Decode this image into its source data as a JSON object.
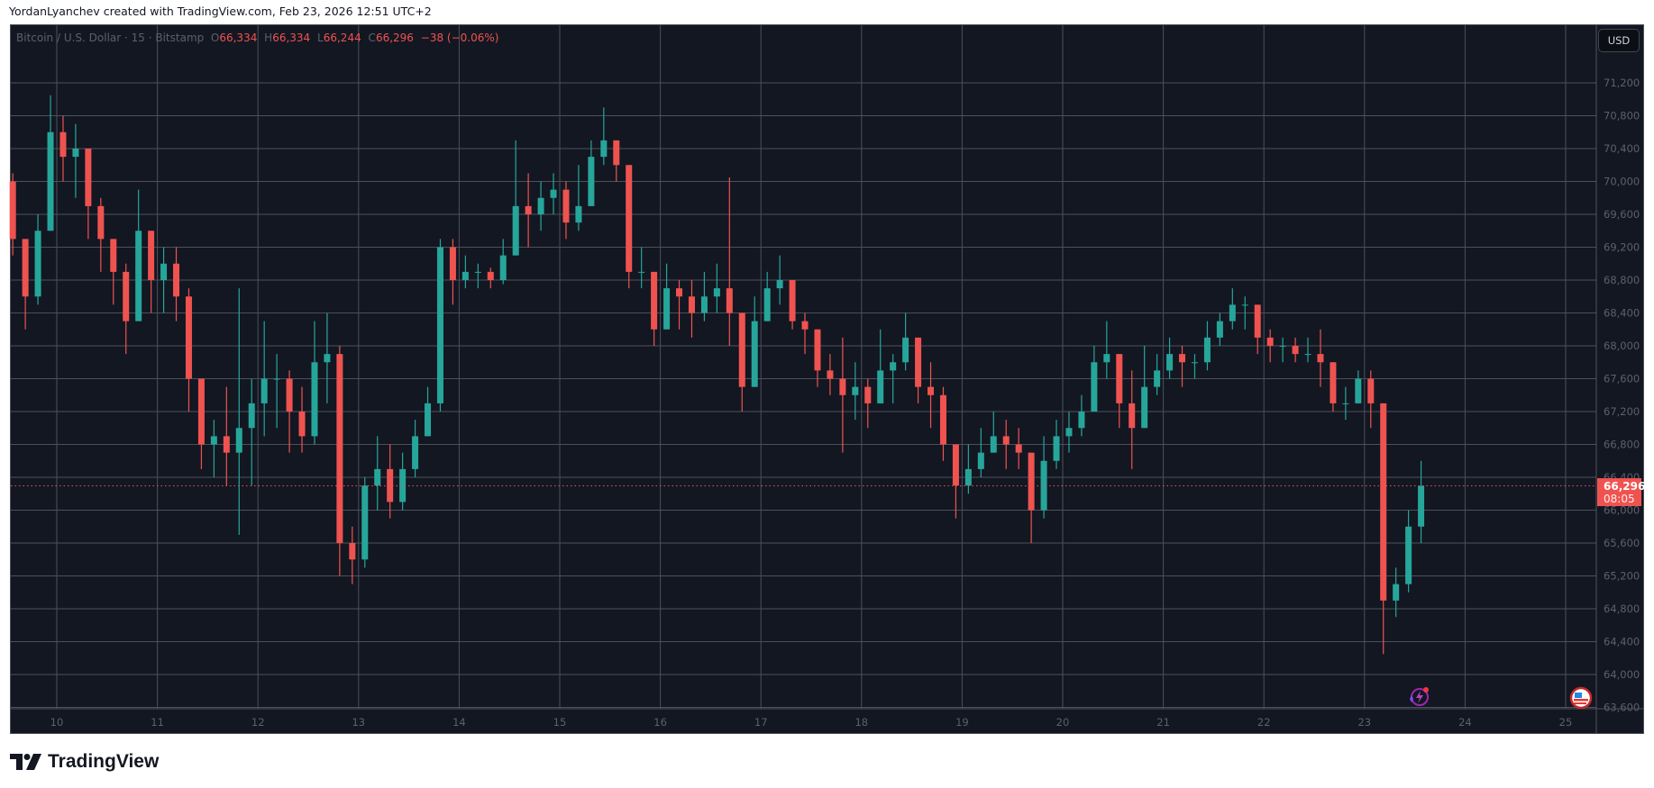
{
  "caption": "YordanLyanchev created with TradingView.com, Feb 23, 2026 12:51 UTC+2",
  "legend": {
    "symbol": "Bitcoin / U.S. Dollar · 15 · Bitstamp",
    "o_label": "O",
    "o": "66,334",
    "h_label": "H",
    "h": "66,334",
    "l_label": "L",
    "l": "66,244",
    "c_label": "C",
    "c": "66,296",
    "change": "−38 (−0.06%)"
  },
  "currency_button": "USD",
  "last_price": {
    "value": "66,296",
    "countdown": "08:05"
  },
  "brand": "TradingView",
  "icons": {
    "lightning": "lightning-icon",
    "flag": "us-flag-icon"
  },
  "colors": {
    "background": "#131722",
    "up": "#26a69a",
    "down": "#ef5350",
    "grid": "#4c505b",
    "last_price": "#ef5350"
  },
  "chart_data": {
    "type": "candlestick",
    "x_ticks": [
      "10",
      "11",
      "12",
      "13",
      "14",
      "15",
      "16",
      "17",
      "18",
      "19",
      "20",
      "21",
      "22",
      "23",
      "24",
      "25"
    ],
    "y_ticks": [
      63600,
      64000,
      64400,
      64800,
      65200,
      65600,
      66000,
      66400,
      66800,
      67200,
      67600,
      68000,
      68400,
      68800,
      69200,
      69600,
      70000,
      70400,
      70800,
      71200
    ],
    "ylim": [
      63584,
      71912
    ],
    "grid": true,
    "last_close": 66296,
    "hlc": [
      [
        70100,
        69100,
        69300
      ],
      [
        69300,
        68200,
        68600
      ],
      [
        69600,
        68500,
        69400
      ],
      [
        71050,
        69400,
        70600
      ],
      [
        70800,
        70000,
        70300
      ],
      [
        70700,
        69800,
        70400
      ],
      [
        70400,
        69300,
        69700
      ],
      [
        69800,
        68900,
        69300
      ],
      [
        69300,
        68500,
        68900
      ],
      [
        69000,
        67900,
        68300
      ],
      [
        69900,
        68300,
        69400
      ],
      [
        69400,
        68400,
        68800
      ],
      [
        69200,
        68400,
        69000
      ],
      [
        69200,
        68300,
        68600
      ],
      [
        68700,
        67200,
        67600
      ],
      [
        67600,
        66500,
        66800
      ],
      [
        67100,
        66400,
        66900
      ],
      [
        67500,
        66300,
        66700
      ],
      [
        68700,
        65700,
        67000
      ],
      [
        67600,
        66300,
        67300
      ],
      [
        68300,
        66900,
        67600
      ],
      [
        67900,
        67000,
        67600
      ],
      [
        67700,
        66700,
        67200
      ],
      [
        67500,
        66700,
        66900
      ],
      [
        68300,
        66800,
        67800
      ],
      [
        68400,
        67300,
        67900
      ],
      [
        68000,
        65200,
        65600
      ],
      [
        65800,
        65100,
        65400
      ],
      [
        66400,
        65300,
        66300
      ],
      [
        66900,
        66000,
        66500
      ],
      [
        66800,
        65900,
        66100
      ],
      [
        66700,
        66000,
        66500
      ],
      [
        67100,
        66400,
        66900
      ],
      [
        67500,
        66900,
        67300
      ],
      [
        69300,
        67200,
        69200
      ],
      [
        69300,
        68500,
        68800
      ],
      [
        69100,
        68700,
        68900
      ],
      [
        69000,
        68700,
        68900
      ],
      [
        68950,
        68700,
        68800
      ],
      [
        69300,
        68750,
        69100
      ],
      [
        70500,
        69100,
        69700
      ],
      [
        70100,
        69200,
        69600
      ],
      [
        70000,
        69400,
        69800
      ],
      [
        70100,
        69600,
        69900
      ],
      [
        70000,
        69300,
        69500
      ],
      [
        70200,
        69400,
        69700
      ],
      [
        70500,
        69700,
        70300
      ],
      [
        70900,
        70200,
        70500
      ],
      [
        70500,
        70000,
        70200
      ],
      [
        70200,
        68700,
        68900
      ],
      [
        69200,
        68700,
        68900
      ],
      [
        68900,
        68000,
        68200
      ],
      [
        69000,
        68200,
        68700
      ],
      [
        68800,
        68200,
        68600
      ],
      [
        68800,
        68100,
        68400
      ],
      [
        68900,
        68300,
        68600
      ],
      [
        69000,
        68400,
        68700
      ],
      [
        70050,
        68000,
        68400
      ],
      [
        68400,
        67200,
        67500
      ],
      [
        68600,
        67500,
        68300
      ],
      [
        68900,
        68300,
        68700
      ],
      [
        69100,
        68500,
        68800
      ],
      [
        68800,
        68200,
        68300
      ],
      [
        68400,
        67900,
        68200
      ],
      [
        68200,
        67500,
        67700
      ],
      [
        67900,
        67400,
        67600
      ],
      [
        68100,
        66700,
        67400
      ],
      [
        67800,
        67100,
        67500
      ],
      [
        67600,
        67000,
        67300
      ],
      [
        68200,
        67300,
        67700
      ],
      [
        67900,
        67300,
        67800
      ],
      [
        68400,
        67700,
        68100
      ],
      [
        68100,
        67300,
        67500
      ],
      [
        67800,
        67000,
        67400
      ],
      [
        67500,
        66600,
        66800
      ],
      [
        66800,
        65900,
        66300
      ],
      [
        66800,
        66200,
        66500
      ],
      [
        67000,
        66400,
        66700
      ],
      [
        67200,
        66700,
        66900
      ],
      [
        67100,
        66500,
        66800
      ],
      [
        67000,
        66500,
        66700
      ],
      [
        66700,
        65600,
        66000
      ],
      [
        66900,
        65900,
        66600
      ],
      [
        67100,
        66500,
        66900
      ],
      [
        67200,
        66700,
        67000
      ],
      [
        67400,
        66900,
        67200
      ],
      [
        68000,
        67200,
        67800
      ],
      [
        68300,
        67600,
        67900
      ],
      [
        67900,
        67000,
        67300
      ],
      [
        67700,
        66500,
        67000
      ],
      [
        68000,
        67000,
        67500
      ],
      [
        67900,
        67400,
        67700
      ],
      [
        68100,
        67600,
        67900
      ],
      [
        68000,
        67500,
        67800
      ],
      [
        67900,
        67600,
        67800
      ],
      [
        68300,
        67700,
        68100
      ],
      [
        68400,
        68000,
        68300
      ],
      [
        68700,
        68200,
        68500
      ],
      [
        68600,
        68200,
        68500
      ],
      [
        68500,
        67900,
        68100
      ],
      [
        68200,
        67800,
        68000
      ],
      [
        68100,
        67800,
        68000
      ],
      [
        68100,
        67800,
        67900
      ],
      [
        68100,
        67800,
        67900
      ],
      [
        68200,
        67500,
        67800
      ],
      [
        67800,
        67200,
        67300
      ],
      [
        67500,
        67100,
        67300
      ],
      [
        67700,
        67300,
        67600
      ],
      [
        67700,
        67000,
        67300
      ],
      [
        67300,
        64250,
        64900
      ],
      [
        65300,
        64700,
        65100
      ],
      [
        66000,
        65000,
        65800
      ],
      [
        66600,
        65600,
        66296
      ]
    ]
  }
}
